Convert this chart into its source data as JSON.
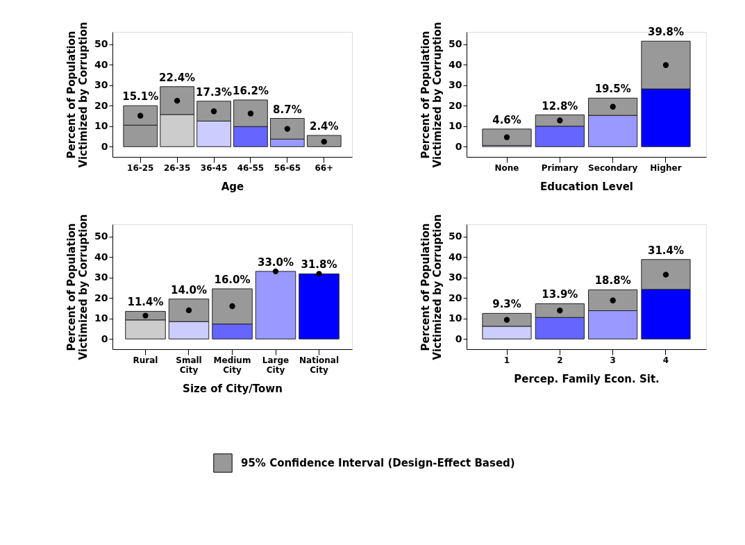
{
  "chart_data": [
    {
      "type": "bar",
      "stacked": true,
      "xlabel": "Age",
      "ylabel": "Percent of Population\nVictimized by Corruption",
      "categories": [
        "16-25",
        "26-35",
        "36-45",
        "46-55",
        "56-65",
        "66+"
      ],
      "series": [
        {
          "colors": [
            "#999999",
            "#cccccc",
            "#ccccff",
            "#6666ff",
            "#9999ff",
            "#999999"
          ],
          "values": [
            10.5,
            15.7,
            12.5,
            9.8,
            3.7,
            null
          ]
        },
        {
          "color": "#999999",
          "values": [
            9.5,
            13.6,
            9.7,
            13.0,
            10.1,
            5.5
          ]
        },
        {
          "type": "scatter",
          "color": "#000000",
          "values": [
            15.1,
            22.4,
            17.3,
            16.2,
            8.7,
            2.4
          ],
          "value_labels": [
            "15.1%",
            "22.4%",
            "17.3%",
            "16.2%",
            "8.7%",
            "2.4%"
          ]
        }
      ],
      "ylim": [
        -5,
        56
      ],
      "yticks": [
        0,
        10,
        20,
        30,
        40,
        50
      ],
      "grid": false,
      "legend": false
    },
    {
      "type": "bar",
      "stacked": true,
      "xlabel": "Education Level",
      "ylabel": "Percent of Population\nVictimized by Corruption",
      "categories": [
        "None",
        "Primary",
        "Secondary",
        "Higher"
      ],
      "series": [
        {
          "colors": [
            "#ccccff",
            "#6666ff",
            "#9999ff",
            "#0000ff"
          ],
          "values": [
            0.6,
            10.0,
            15.3,
            28.2
          ]
        },
        {
          "color": "#999999",
          "values": [
            8.0,
            5.5,
            8.4,
            23.3
          ]
        },
        {
          "type": "scatter",
          "color": "#000000",
          "values": [
            4.6,
            12.8,
            19.5,
            39.8
          ],
          "value_labels": [
            "4.6%",
            "12.8%",
            "19.5%",
            "39.8%"
          ]
        }
      ],
      "ylim": [
        -5,
        56
      ],
      "yticks": [
        0,
        10,
        20,
        30,
        40,
        50
      ],
      "grid": false,
      "legend": false
    },
    {
      "type": "bar",
      "stacked": true,
      "xlabel": "Size of City/Town",
      "ylabel": "Percent of Population\nVictimized by Corruption",
      "categories": [
        "Rural",
        "Small\nCity",
        "Medium\nCity",
        "Large\nCity",
        "National\nCity"
      ],
      "series": [
        {
          "colors": [
            "#cccccc",
            "#ccccff",
            "#6666ff",
            "#9999ff",
            "#0000ff"
          ],
          "values": [
            9.3,
            8.5,
            7.3,
            33.0,
            31.8
          ]
        },
        {
          "color": "#999999",
          "values": [
            4.2,
            11.0,
            17.2,
            null,
            null
          ]
        },
        {
          "type": "scatter",
          "color": "#000000",
          "values": [
            11.4,
            14.0,
            16.0,
            33.0,
            31.8
          ],
          "value_labels": [
            "11.4%",
            "14.0%",
            "16.0%",
            "33.0%",
            "31.8%"
          ]
        }
      ],
      "ylim": [
        -5,
        56
      ],
      "yticks": [
        0,
        10,
        20,
        30,
        40,
        50
      ],
      "grid": false,
      "legend": false
    },
    {
      "type": "bar",
      "stacked": true,
      "xlabel": "Percep. Family Econ. Sit.",
      "ylabel": "Percent of Population\nVictimized by Corruption",
      "categories": [
        "1",
        "2",
        "3",
        "4"
      ],
      "series": [
        {
          "colors": [
            "#ccccff",
            "#6666ff",
            "#9999ff",
            "#0000ff"
          ],
          "values": [
            6.2,
            10.5,
            13.8,
            24.2
          ]
        },
        {
          "name": "95% Confidence Interval (Design-Effect Based)",
          "color": "#999999",
          "values": [
            6.3,
            6.7,
            10.2,
            14.6
          ]
        },
        {
          "type": "scatter",
          "color": "#000000",
          "values": [
            9.3,
            13.9,
            18.8,
            31.4
          ],
          "value_labels": [
            "9.3%",
            "13.9%",
            "18.8%",
            "31.4%"
          ]
        }
      ],
      "ylim": [
        -5,
        56
      ],
      "yticks": [
        0,
        10,
        20,
        30,
        40,
        50
      ],
      "grid": false,
      "legend": "bottom"
    }
  ]
}
